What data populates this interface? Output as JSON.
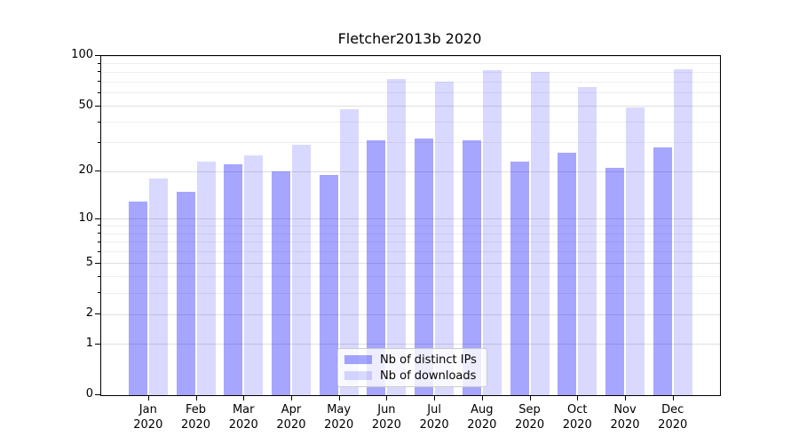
{
  "title": "Fletcher2013b 2020",
  "chart_data": {
    "type": "bar",
    "title": "Fletcher2013b 2020",
    "categories": [
      "Jan",
      "Feb",
      "Mar",
      "Apr",
      "May",
      "Jun",
      "Jul",
      "Aug",
      "Sep",
      "Oct",
      "Nov",
      "Dec"
    ],
    "x_sublabel": "2020",
    "series": [
      {
        "name": "Nb of distinct IPs",
        "color": "#0000ff",
        "alpha": 0.35,
        "values": [
          13,
          15,
          22,
          20,
          19,
          31,
          32,
          31,
          23,
          26,
          21,
          28
        ]
      },
      {
        "name": "Nb of downloads",
        "color": "#0000ff",
        "alpha": 0.15,
        "values": [
          18,
          23,
          25,
          29,
          48,
          73,
          70,
          82,
          80,
          65,
          49,
          83
        ]
      }
    ],
    "yscale": "log1p",
    "ylim": [
      0,
      100
    ],
    "yticks_major": [
      0,
      1,
      2,
      5,
      10,
      20,
      50,
      100
    ],
    "yticks_minor": [
      3,
      4,
      6,
      7,
      8,
      9,
      30,
      40,
      60,
      70,
      80,
      90
    ],
    "grid": true,
    "legend_position": "lower center",
    "colors": {
      "bar_distinct_ips": "#a6a6ff",
      "bar_downloads": "#d9d9ff",
      "grid_major": "#dfdfdf",
      "grid_minor": "#efefef",
      "axis": "#000000",
      "legend_border": "#cccccc"
    }
  }
}
